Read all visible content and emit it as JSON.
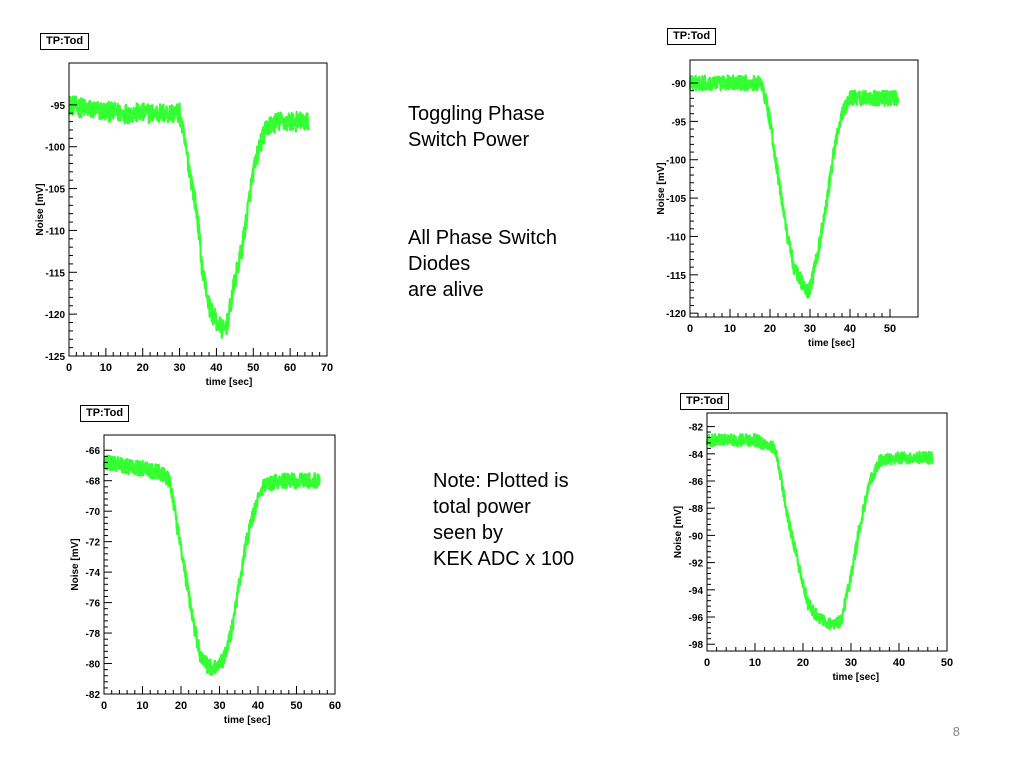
{
  "slide": {
    "text_block_1": [
      "Toggling Phase",
      "Switch Power"
    ],
    "text_block_2": [
      "All Phase Switch",
      "Diodes",
      "are alive"
    ],
    "text_block_3": [
      "Note:  Plotted is",
      "total power",
      "seen by",
      "KEK ADC x 100"
    ],
    "page_number": "8"
  },
  "colors": {
    "trace": "#33ff33",
    "frame": "#000000"
  },
  "chart_data": [
    {
      "type": "line",
      "title": "TP:Tod",
      "xlabel": "time [sec]",
      "ylabel": "Noise [mV]",
      "xlim": [
        0,
        70
      ],
      "ylim": [
        -125,
        -90
      ],
      "xticks": [
        0,
        10,
        20,
        30,
        40,
        50,
        60,
        70
      ],
      "yticks": [
        -95,
        -100,
        -105,
        -110,
        -115,
        -120,
        -125
      ],
      "ytick_labels": [
        "-95",
        "-100",
        "-105",
        "-110",
        "-115",
        "-120",
        "-125"
      ],
      "noise_amplitude": 1.2,
      "series": [
        {
          "x": [
            0,
            5,
            10,
            15,
            20,
            25,
            30,
            32,
            34,
            35,
            36,
            38,
            40,
            42,
            43,
            45,
            47,
            49,
            50,
            52,
            54,
            57,
            60,
            65
          ],
          "y": [
            -95,
            -95.5,
            -95.8,
            -96,
            -96,
            -96,
            -96,
            -101,
            -106,
            -109,
            -114,
            -119,
            -121,
            -122,
            -121,
            -116,
            -112,
            -106,
            -103,
            -99.5,
            -97.5,
            -97,
            -97,
            -97
          ]
        }
      ]
    },
    {
      "type": "line",
      "title": "TP:Tod",
      "xlabel": "time [sec]",
      "ylabel": "Noise [mV]",
      "xlim": [
        0,
        57
      ],
      "ylim": [
        -120.5,
        -87
      ],
      "xticks": [
        0,
        10,
        20,
        30,
        40,
        50
      ],
      "yticks": [
        -90,
        -95,
        -100,
        -105,
        -110,
        -115,
        -120
      ],
      "ytick_labels": [
        "-90",
        "-95",
        "-100",
        "-105",
        "-110",
        "-115",
        "-120"
      ],
      "noise_amplitude": 1.0,
      "series": [
        {
          "x": [
            0,
            5,
            10,
            15,
            18,
            20,
            22,
            24,
            26,
            28,
            29,
            30,
            32,
            34,
            36,
            38,
            40,
            45,
            50,
            52
          ],
          "y": [
            -90,
            -90,
            -90,
            -90,
            -90,
            -95,
            -102,
            -109,
            -114,
            -116,
            -117,
            -117,
            -112,
            -106,
            -99,
            -94,
            -92,
            -92,
            -92,
            -92
          ]
        }
      ]
    },
    {
      "type": "line",
      "title": "TP:Tod",
      "xlabel": "time [sec]",
      "ylabel": "Noise [mV]",
      "xlim": [
        0,
        60
      ],
      "ylim": [
        -82,
        -65
      ],
      "xticks": [
        0,
        10,
        20,
        30,
        40,
        50,
        60
      ],
      "yticks": [
        -66,
        -68,
        -70,
        -72,
        -74,
        -76,
        -78,
        -80,
        -82
      ],
      "ytick_labels": [
        "-66",
        "-68",
        "-70",
        "-72",
        "-74",
        "-76",
        "-78",
        "-80",
        "-82"
      ],
      "noise_amplitude": 0.5,
      "series": [
        {
          "x": [
            0,
            5,
            10,
            15,
            17,
            19,
            21,
            23,
            25,
            27,
            29,
            31,
            33,
            35,
            37,
            39,
            41,
            45,
            50,
            56
          ],
          "y": [
            -66.8,
            -67,
            -67.2,
            -67.5,
            -68,
            -71,
            -74,
            -77,
            -79.5,
            -80.2,
            -80.3,
            -79.8,
            -78,
            -75,
            -72,
            -70,
            -68.5,
            -68,
            -68,
            -68
          ]
        }
      ]
    },
    {
      "type": "line",
      "title": "TP:Tod",
      "xlabel": "time [sec]",
      "ylabel": "Noise [mV]",
      "xlim": [
        0,
        50
      ],
      "ylim": [
        -98.5,
        -81
      ],
      "xticks": [
        0,
        10,
        20,
        30,
        40,
        50
      ],
      "yticks": [
        -82,
        -84,
        -86,
        -88,
        -90,
        -92,
        -94,
        -96,
        -98
      ],
      "ytick_labels": [
        "-82",
        "-84",
        "-86",
        "-88",
        "-90",
        "-92",
        "-94",
        "-96",
        "-98"
      ],
      "noise_amplitude": 0.45,
      "series": [
        {
          "x": [
            0,
            5,
            10,
            14,
            15,
            17,
            19,
            21,
            23,
            25,
            27,
            28,
            30,
            32,
            34,
            36,
            40,
            45,
            47
          ],
          "y": [
            -83,
            -83,
            -83,
            -83.5,
            -85,
            -89,
            -92,
            -95,
            -96,
            -96.5,
            -96.5,
            -96.2,
            -93,
            -89,
            -86,
            -84.5,
            -84.3,
            -84.3,
            -84.3
          ]
        }
      ]
    }
  ]
}
